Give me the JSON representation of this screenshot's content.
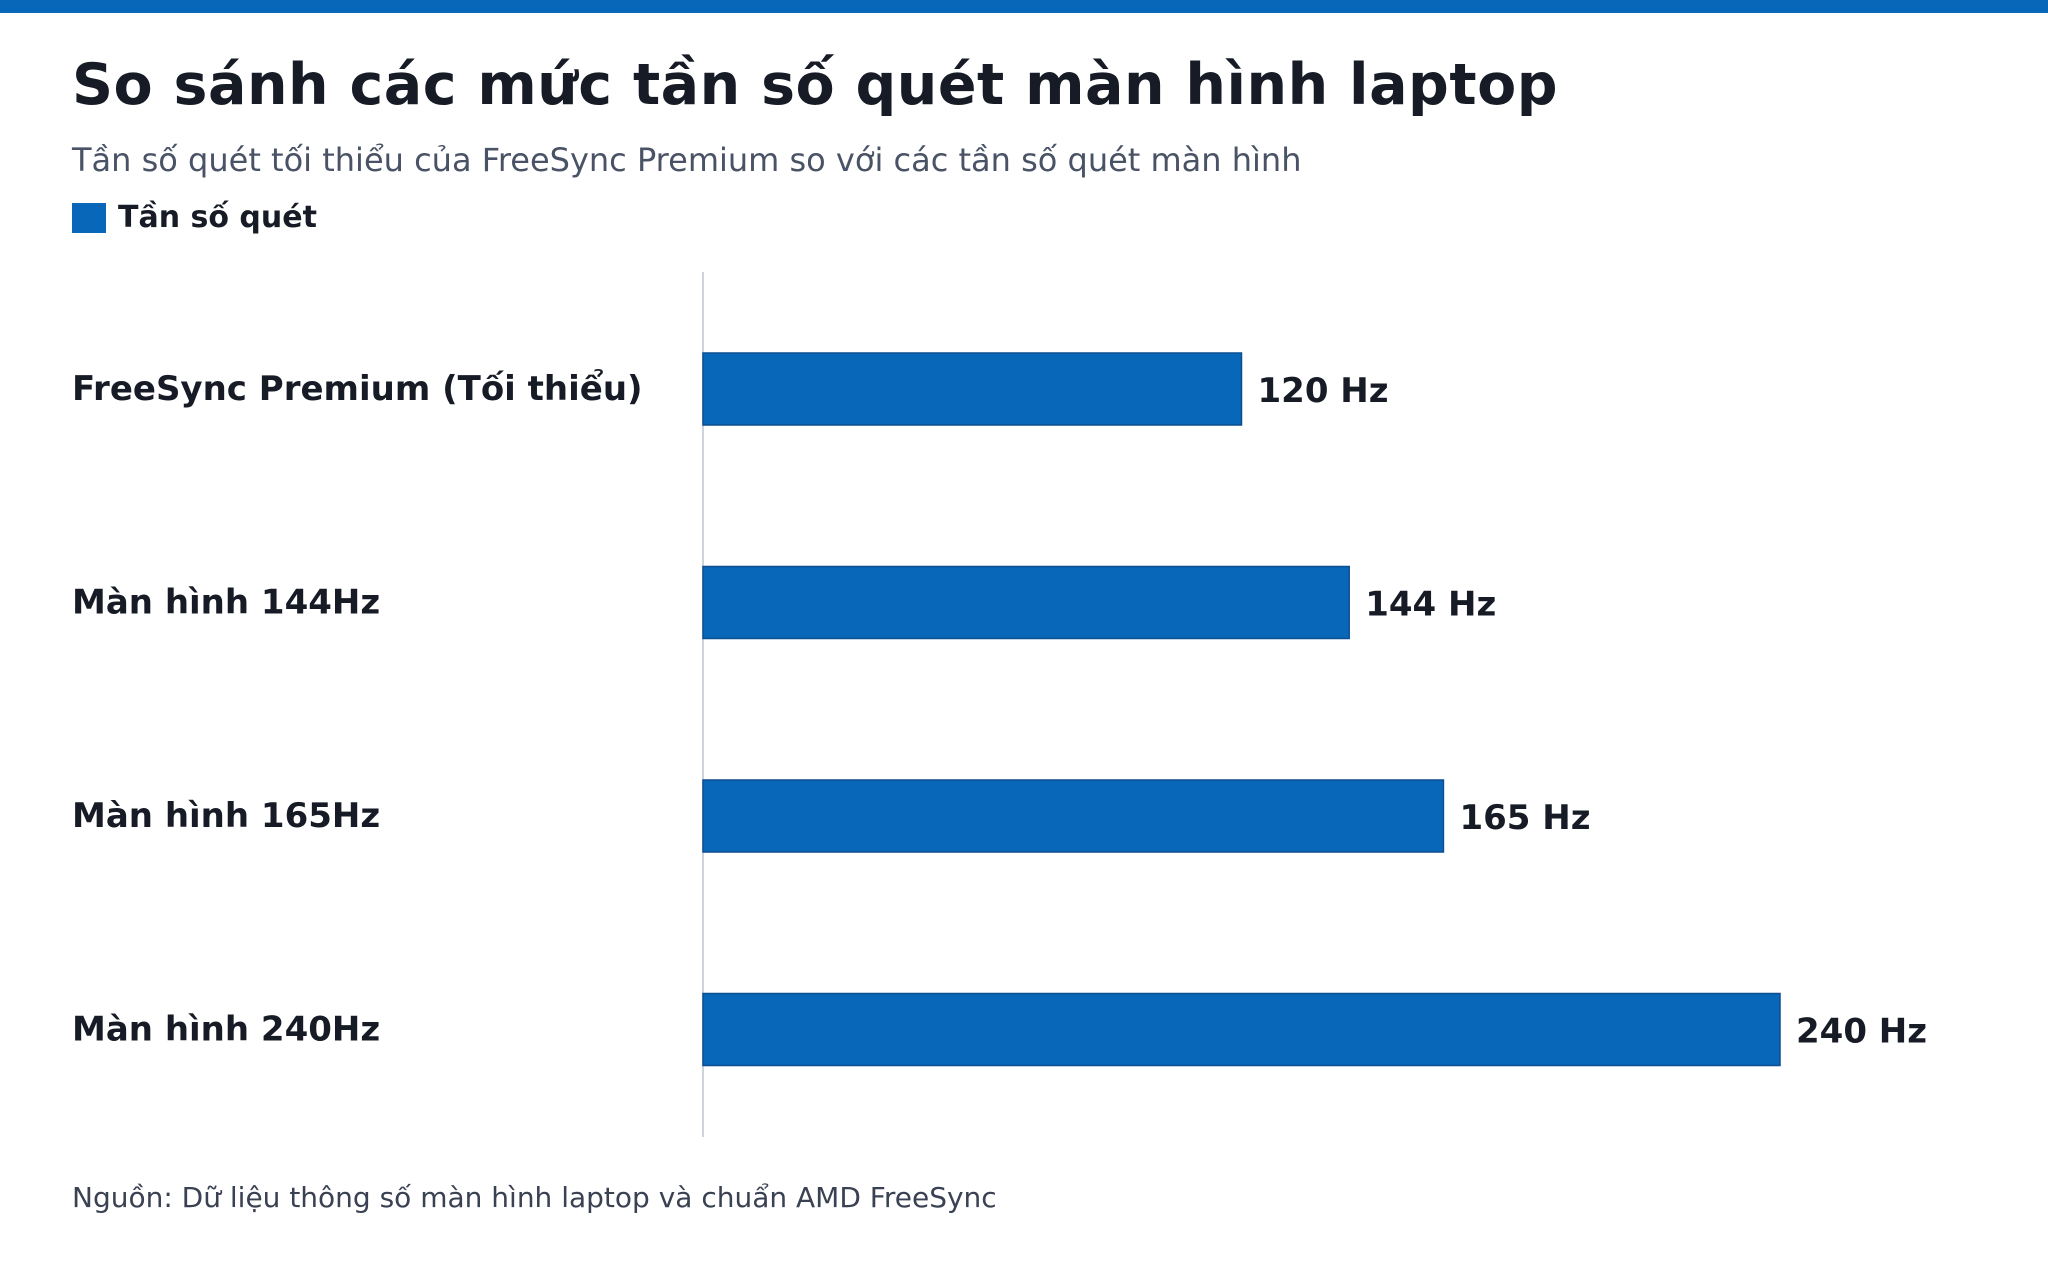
{
  "header": {
    "title": "So sánh các mức tần số quét màn hình laptop",
    "subtitle": "Tần số quét tối thiểu của FreeSync Premium so với các tần số quét màn hình"
  },
  "legend": {
    "label": "Tần số quét"
  },
  "colors": {
    "accent": "#0867b8",
    "bar": "#0867b8",
    "bar_edge": "#0b4f91",
    "axis": "#cfd3da"
  },
  "chart_data": {
    "type": "bar",
    "orientation": "horizontal",
    "categories": [
      "FreeSync Premium (Tối thiểu)",
      "Màn hình 144Hz",
      "Màn hình 165Hz",
      "Màn hình 240Hz"
    ],
    "series": [
      {
        "name": "Tần số quét",
        "values": [
          120,
          144,
          165,
          240
        ]
      }
    ],
    "value_labels": [
      "120 Hz",
      "144 Hz",
      "165 Hz",
      "240 Hz"
    ],
    "title": "So sánh các mức tần số quét màn hình laptop",
    "subtitle": "Tần số quét tối thiểu của FreeSync Premium so với các tần số quét màn hình",
    "xlim": [
      0,
      240
    ],
    "grid": false,
    "legend_position": "top-left"
  },
  "footer": {
    "source": "Nguồn: Dữ liệu thông số màn hình laptop và chuẩn AMD FreeSync"
  }
}
